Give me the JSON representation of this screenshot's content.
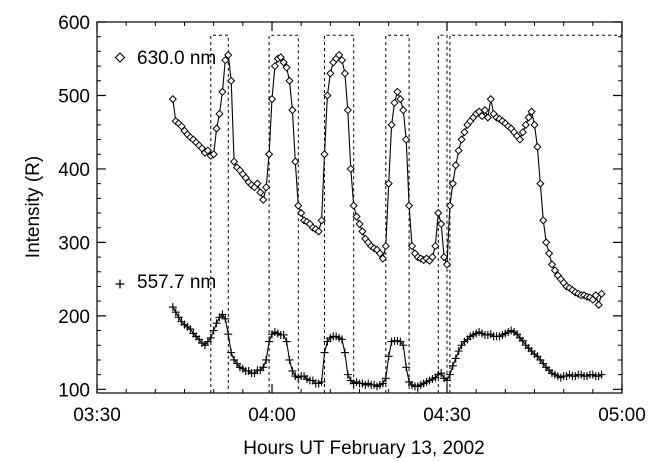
{
  "chart_data": {
    "type": "line",
    "title": "",
    "xlabel": "Hours UT February 13, 2002",
    "ylabel": "Intensity (R)",
    "xlim": [
      "03:30",
      "05:00"
    ],
    "ylim": [
      95,
      600
    ],
    "x_ticks": [
      "03:30",
      "04:00",
      "04:30",
      "05:00"
    ],
    "y_ticks": [
      100,
      200,
      300,
      400,
      500,
      600
    ],
    "grid": false,
    "legend": "inline labels at left of each series",
    "series": [
      {
        "name": "630.0 nm",
        "marker": "diamond",
        "color": "#000000",
        "points": [
          [
            "03:43",
            495
          ],
          [
            "03:43.5",
            465
          ],
          [
            "03:44",
            462
          ],
          [
            "03:44.5",
            458
          ],
          [
            "03:45",
            452
          ],
          [
            "03:45.5",
            447
          ],
          [
            "03:46",
            443
          ],
          [
            "03:46.5",
            440
          ],
          [
            "03:47",
            436
          ],
          [
            "03:47.5",
            432
          ],
          [
            "03:48",
            428
          ],
          [
            "03:48.5",
            422
          ],
          [
            "03:49",
            425
          ],
          [
            "03:49.5",
            418
          ],
          [
            "03:50",
            420
          ],
          [
            "03:50.5",
            455
          ],
          [
            "03:51",
            475
          ],
          [
            "03:51.5",
            505
          ],
          [
            "03:52",
            548
          ],
          [
            "03:52.5",
            555
          ],
          [
            "03:53",
            520
          ],
          [
            "03:53.5",
            410
          ],
          [
            "03:54",
            402
          ],
          [
            "03:54.5",
            398
          ],
          [
            "03:55",
            393
          ],
          [
            "03:55.5",
            388
          ],
          [
            "03:56",
            382
          ],
          [
            "03:56.5",
            378
          ],
          [
            "03:57",
            375
          ],
          [
            "03:57.5",
            380
          ],
          [
            "03:58",
            368
          ],
          [
            "03:58.5",
            358
          ],
          [
            "03:59",
            375
          ],
          [
            "03:59.5",
            420
          ],
          [
            "04:00",
            495
          ],
          [
            "04:00.5",
            540
          ],
          [
            "04:01",
            550
          ],
          [
            "04:01.5",
            552
          ],
          [
            "04:02",
            545
          ],
          [
            "04:02.5",
            538
          ],
          [
            "04:03",
            520
          ],
          [
            "04:03.5",
            480
          ],
          [
            "04:04",
            410
          ],
          [
            "04:04.5",
            350
          ],
          [
            "04:05",
            340
          ],
          [
            "04:05.5",
            330
          ],
          [
            "04:06",
            328
          ],
          [
            "04:06.5",
            325
          ],
          [
            "04:07",
            320
          ],
          [
            "04:07.5",
            318
          ],
          [
            "04:08",
            315
          ],
          [
            "04:08.5",
            330
          ],
          [
            "04:09",
            420
          ],
          [
            "04:09.5",
            500
          ],
          [
            "04:10",
            530
          ],
          [
            "04:10.5",
            545
          ],
          [
            "04:11",
            550
          ],
          [
            "04:11.5",
            555
          ],
          [
            "04:12",
            548
          ],
          [
            "04:12.5",
            530
          ],
          [
            "04:13",
            480
          ],
          [
            "04:13.5",
            400
          ],
          [
            "04:14",
            350
          ],
          [
            "04:14.5",
            335
          ],
          [
            "04:15",
            325
          ],
          [
            "04:15.5",
            315
          ],
          [
            "04:16",
            305
          ],
          [
            "04:16.5",
            300
          ],
          [
            "04:17",
            295
          ],
          [
            "04:17.5",
            292
          ],
          [
            "04:18",
            290
          ],
          [
            "04:18.5",
            285
          ],
          [
            "04:19",
            278
          ],
          [
            "04:19.5",
            295
          ],
          [
            "04:20",
            380
          ],
          [
            "04:20.5",
            460
          ],
          [
            "04:21",
            490
          ],
          [
            "04:21.5",
            505
          ],
          [
            "04:22",
            495
          ],
          [
            "04:22.5",
            480
          ],
          [
            "04:23",
            440
          ],
          [
            "04:23.5",
            350
          ],
          [
            "04:24",
            295
          ],
          [
            "04:24.5",
            285
          ],
          [
            "04:25",
            280
          ],
          [
            "04:25.5",
            278
          ],
          [
            "04:26",
            276
          ],
          [
            "04:26.5",
            278
          ],
          [
            "04:27",
            275
          ],
          [
            "04:27.5",
            280
          ],
          [
            "04:28",
            295
          ],
          [
            "04:28.5",
            340
          ],
          [
            "04:29",
            325
          ],
          [
            "04:29.5",
            280
          ],
          [
            "04:30",
            270
          ],
          [
            "04:30.5",
            350
          ],
          [
            "04:31",
            380
          ],
          [
            "04:31.5",
            405
          ],
          [
            "04:32",
            425
          ],
          [
            "04:32.5",
            440
          ],
          [
            "04:33",
            450
          ],
          [
            "04:33.5",
            460
          ],
          [
            "04:34",
            465
          ],
          [
            "04:34.5",
            470
          ],
          [
            "04:35",
            475
          ],
          [
            "04:35.5",
            478
          ],
          [
            "04:36",
            472
          ],
          [
            "04:36.5",
            480
          ],
          [
            "04:37",
            470
          ],
          [
            "04:37.5",
            495
          ],
          [
            "04:38",
            475
          ],
          [
            "04:38.5",
            470
          ],
          [
            "04:39",
            468
          ],
          [
            "04:39.5",
            465
          ],
          [
            "04:40",
            462
          ],
          [
            "04:40.5",
            458
          ],
          [
            "04:41",
            455
          ],
          [
            "04:41.5",
            450
          ],
          [
            "04:42",
            445
          ],
          [
            "04:42.5",
            440
          ],
          [
            "04:43",
            450
          ],
          [
            "04:43.5",
            460
          ],
          [
            "04:44",
            470
          ],
          [
            "04:44.5",
            478
          ],
          [
            "04:45",
            460
          ],
          [
            "04:45.5",
            430
          ],
          [
            "04:46",
            380
          ],
          [
            "04:46.5",
            330
          ],
          [
            "04:47",
            300
          ],
          [
            "04:47.5",
            285
          ],
          [
            "04:48",
            270
          ],
          [
            "04:48.5",
            262
          ],
          [
            "04:49",
            255
          ],
          [
            "04:49.5",
            250
          ],
          [
            "04:50",
            245
          ],
          [
            "04:50.5",
            240
          ],
          [
            "04:51",
            238
          ],
          [
            "04:51.5",
            235
          ],
          [
            "04:52",
            232
          ],
          [
            "04:52.5",
            230
          ],
          [
            "04:53",
            228
          ],
          [
            "04:53.5",
            228
          ],
          [
            "04:54",
            226
          ],
          [
            "04:54.5",
            225
          ],
          [
            "04:55",
            222
          ],
          [
            "04:55.5",
            228
          ],
          [
            "04:56",
            215
          ],
          [
            "04:56.5",
            230
          ]
        ]
      },
      {
        "name": "557.7 nm",
        "marker": "plus",
        "color": "#000000",
        "points": [
          [
            "03:43",
            212
          ],
          [
            "03:43.5",
            205
          ],
          [
            "03:44",
            198
          ],
          [
            "03:44.5",
            192
          ],
          [
            "03:45",
            188
          ],
          [
            "03:45.5",
            185
          ],
          [
            "03:46",
            182
          ],
          [
            "03:46.5",
            176
          ],
          [
            "03:47",
            172
          ],
          [
            "03:47.5",
            168
          ],
          [
            "03:48",
            163
          ],
          [
            "03:48.5",
            160
          ],
          [
            "03:49",
            165
          ],
          [
            "03:49.5",
            170
          ],
          [
            "03:50",
            180
          ],
          [
            "03:50.5",
            190
          ],
          [
            "03:51",
            198
          ],
          [
            "03:51.5",
            202
          ],
          [
            "03:52",
            196
          ],
          [
            "03:52.5",
            175
          ],
          [
            "03:53",
            150
          ],
          [
            "03:53.5",
            140
          ],
          [
            "03:54",
            135
          ],
          [
            "03:54.5",
            130
          ],
          [
            "03:55",
            128
          ],
          [
            "03:55.5",
            125
          ],
          [
            "03:56",
            125
          ],
          [
            "03:56.5",
            122
          ],
          [
            "03:57",
            122
          ],
          [
            "03:57.5",
            126
          ],
          [
            "03:58",
            126
          ],
          [
            "03:58.5",
            130
          ],
          [
            "03:59",
            140
          ],
          [
            "03:59.5",
            165
          ],
          [
            "04:00",
            175
          ],
          [
            "04:00.5",
            178
          ],
          [
            "04:01",
            176
          ],
          [
            "04:01.5",
            174
          ],
          [
            "04:02",
            174
          ],
          [
            "04:02.5",
            165
          ],
          [
            "04:03",
            140
          ],
          [
            "04:03.5",
            125
          ],
          [
            "04:04",
            118
          ],
          [
            "04:04.5",
            116
          ],
          [
            "04:05",
            118
          ],
          [
            "04:05.5",
            118
          ],
          [
            "04:06",
            114
          ],
          [
            "04:06.5",
            112
          ],
          [
            "04:07",
            112
          ],
          [
            "04:07.5",
            108
          ],
          [
            "04:08",
            108
          ],
          [
            "04:08.5",
            110
          ],
          [
            "04:09",
            150
          ],
          [
            "04:09.5",
            165
          ],
          [
            "04:10",
            170
          ],
          [
            "04:10.5",
            172
          ],
          [
            "04:11",
            172
          ],
          [
            "04:11.5",
            170
          ],
          [
            "04:12",
            168
          ],
          [
            "04:12.5",
            150
          ],
          [
            "04:13",
            120
          ],
          [
            "04:13.5",
            112
          ],
          [
            "04:14",
            108
          ],
          [
            "04:14.5",
            110
          ],
          [
            "04:15",
            108
          ],
          [
            "04:15.5",
            108
          ],
          [
            "04:16",
            106
          ],
          [
            "04:16.5",
            108
          ],
          [
            "04:17",
            106
          ],
          [
            "04:17.5",
            106
          ],
          [
            "04:18",
            104
          ],
          [
            "04:18.5",
            106
          ],
          [
            "04:19",
            108
          ],
          [
            "04:19.5",
            115
          ],
          [
            "04:20",
            145
          ],
          [
            "04:20.5",
            165
          ],
          [
            "04:21",
            166
          ],
          [
            "04:21.5",
            166
          ],
          [
            "04:22",
            165
          ],
          [
            "04:22.5",
            160
          ],
          [
            "04:23",
            130
          ],
          [
            "04:23.5",
            110
          ],
          [
            "04:24",
            106
          ],
          [
            "04:24.5",
            104
          ],
          [
            "04:25",
            104
          ],
          [
            "04:25.5",
            106
          ],
          [
            "04:26",
            108
          ],
          [
            "04:26.5",
            110
          ],
          [
            "04:27",
            112
          ],
          [
            "04:27.5",
            114
          ],
          [
            "04:28",
            116
          ],
          [
            "04:28.5",
            120
          ],
          [
            "04:29",
            122
          ],
          [
            "04:29.5",
            115
          ],
          [
            "04:30",
            112
          ],
          [
            "04:30.5",
            120
          ],
          [
            "04:31",
            132
          ],
          [
            "04:31.5",
            142
          ],
          [
            "04:32",
            152
          ],
          [
            "04:32.5",
            160
          ],
          [
            "04:33",
            165
          ],
          [
            "04:33.5",
            168
          ],
          [
            "04:34",
            172
          ],
          [
            "04:34.5",
            174
          ],
          [
            "04:35",
            176
          ],
          [
            "04:35.5",
            178
          ],
          [
            "04:36",
            176
          ],
          [
            "04:36.5",
            174
          ],
          [
            "04:37",
            174
          ],
          [
            "04:37.5",
            175
          ],
          [
            "04:38",
            172
          ],
          [
            "04:38.5",
            172
          ],
          [
            "04:39",
            172
          ],
          [
            "04:39.5",
            174
          ],
          [
            "04:40",
            176
          ],
          [
            "04:40.5",
            178
          ],
          [
            "04:41",
            180
          ],
          [
            "04:41.5",
            178
          ],
          [
            "04:42",
            175
          ],
          [
            "04:42.5",
            170
          ],
          [
            "04:43",
            166
          ],
          [
            "04:43.5",
            160
          ],
          [
            "04:44",
            156
          ],
          [
            "04:44.5",
            152
          ],
          [
            "04:45",
            148
          ],
          [
            "04:45.5",
            145
          ],
          [
            "04:46",
            140
          ],
          [
            "04:46.5",
            135
          ],
          [
            "04:47",
            130
          ],
          [
            "04:47.5",
            126
          ],
          [
            "04:48",
            122
          ],
          [
            "04:48.5",
            120
          ],
          [
            "04:49",
            118
          ],
          [
            "04:49.5",
            116
          ],
          [
            "04:50",
            118
          ],
          [
            "04:50.5",
            118
          ],
          [
            "04:51",
            120
          ],
          [
            "04:51.5",
            118
          ],
          [
            "04:52",
            118
          ],
          [
            "04:52.5",
            120
          ],
          [
            "04:53",
            120
          ],
          [
            "04:53.5",
            118
          ],
          [
            "04:54",
            118
          ],
          [
            "04:54.5",
            120
          ],
          [
            "04:55",
            120
          ],
          [
            "04:55.5",
            118
          ],
          [
            "04:56",
            118
          ],
          [
            "04:56.5",
            120
          ]
        ]
      }
    ],
    "pulse_windows": [
      [
        "03:49.5",
        "03:52.5"
      ],
      [
        "03:59.5",
        "04:04.5"
      ],
      [
        "04:09",
        "04:14"
      ],
      [
        "04:19.5",
        "04:23.5"
      ],
      [
        "04:28.5",
        "04:30"
      ],
      [
        "04:30.5",
        "05:00"
      ]
    ],
    "pulse_level": 582,
    "annotations": [
      {
        "text": "630.0 nm",
        "series": 0,
        "marker": "diamond"
      },
      {
        "text": "557.7 nm",
        "series": 1,
        "marker": "plus"
      }
    ]
  }
}
